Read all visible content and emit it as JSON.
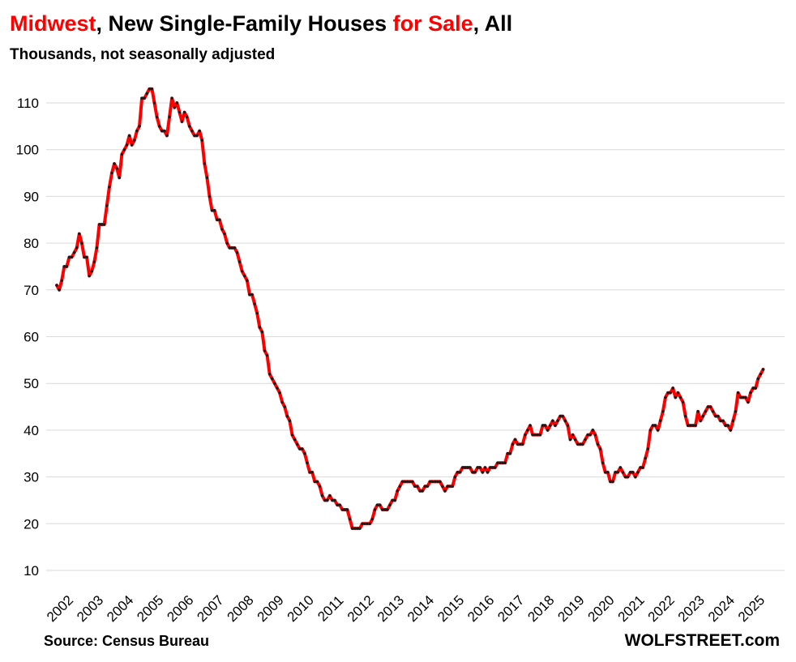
{
  "header": {
    "title_part1": "Midwest",
    "title_part2": ", New Single-Family Houses ",
    "title_part3": "for Sale",
    "title_part4": ", All",
    "subtitle": "Thousands, not seasonally adjusted"
  },
  "footer": {
    "source": "Source: Census Bureau",
    "brand": "WOLFSTREET.com"
  },
  "colors": {
    "line": "#ff0000",
    "markers": "#1a1a1a",
    "grid": "#d9d9d9",
    "accent_title": "#ff0000"
  },
  "chart_data": {
    "type": "line",
    "title": "Midwest, New Single-Family Houses for Sale, All",
    "subtitle": "Thousands, not seasonally adjusted",
    "xlabel": "",
    "ylabel": "",
    "ylim": [
      10,
      115
    ],
    "yticks": [
      10,
      20,
      30,
      40,
      50,
      60,
      70,
      80,
      90,
      100,
      110
    ],
    "xtick_labels": [
      "2002",
      "2003",
      "2004",
      "2005",
      "2006",
      "2007",
      "2008",
      "2009",
      "2010",
      "2011",
      "2012",
      "2013",
      "2014",
      "2015",
      "2016",
      "2017",
      "2018",
      "2019",
      "2020",
      "2021",
      "2022",
      "2023",
      "2024",
      "2025"
    ],
    "grid": "horizontal",
    "frequency": "monthly",
    "start": "2002-01",
    "series": [
      {
        "values": [
          71,
          70,
          72,
          75,
          75,
          77,
          77,
          78,
          79,
          82,
          80,
          77,
          77,
          73,
          74,
          76,
          79,
          84,
          84,
          84,
          88,
          92,
          95,
          97,
          96,
          94,
          99,
          100,
          101,
          103,
          101,
          102,
          104,
          105,
          111,
          111,
          112,
          113,
          113,
          110,
          107,
          105,
          104,
          104,
          103,
          107,
          111,
          109,
          110,
          108,
          106,
          108,
          107,
          105,
          104,
          103,
          103,
          104,
          102,
          97,
          94,
          90,
          87,
          87,
          85,
          85,
          83,
          82,
          80,
          79,
          79,
          79,
          78,
          76,
          74,
          73,
          72,
          69,
          69,
          67,
          65,
          62,
          61,
          57,
          56,
          52,
          51,
          50,
          49,
          48,
          46,
          45,
          43,
          42,
          39,
          38,
          37,
          36,
          36,
          35,
          33,
          31,
          31,
          29,
          29,
          28,
          26,
          25,
          25,
          26,
          25,
          25,
          24,
          24,
          23,
          23,
          23,
          21,
          19,
          19,
          19,
          19,
          20,
          20,
          20,
          20,
          21,
          23,
          24,
          24,
          23,
          23,
          23,
          24,
          25,
          25,
          27,
          28,
          29,
          29,
          29,
          29,
          29,
          28,
          28,
          27,
          27,
          28,
          28,
          29,
          29,
          29,
          29,
          29,
          28,
          27,
          28,
          28,
          28,
          30,
          31,
          31,
          32,
          32,
          32,
          32,
          31,
          31,
          32,
          32,
          31,
          32,
          31,
          32,
          32,
          32,
          33,
          33,
          33,
          33,
          35,
          35,
          37,
          38,
          37,
          37,
          37,
          39,
          40,
          41,
          39,
          39,
          39,
          39,
          41,
          41,
          40,
          41,
          42,
          41,
          42,
          43,
          43,
          42,
          41,
          38,
          39,
          38,
          37,
          37,
          37,
          38,
          39,
          39,
          40,
          39,
          37,
          36,
          33,
          31,
          31,
          29,
          29,
          31,
          31,
          32,
          31,
          30,
          30,
          31,
          31,
          30,
          31,
          32,
          32,
          34,
          36,
          40,
          41,
          41,
          40,
          42,
          44,
          47,
          48,
          48,
          49,
          47,
          48,
          47,
          46,
          43,
          41,
          41,
          41,
          41,
          44,
          42,
          43,
          44,
          45,
          45,
          44,
          43,
          43,
          42,
          42,
          41,
          41,
          40,
          42,
          44,
          48,
          47,
          47,
          47,
          46,
          48,
          49,
          49,
          51,
          52,
          53
        ]
      }
    ]
  }
}
